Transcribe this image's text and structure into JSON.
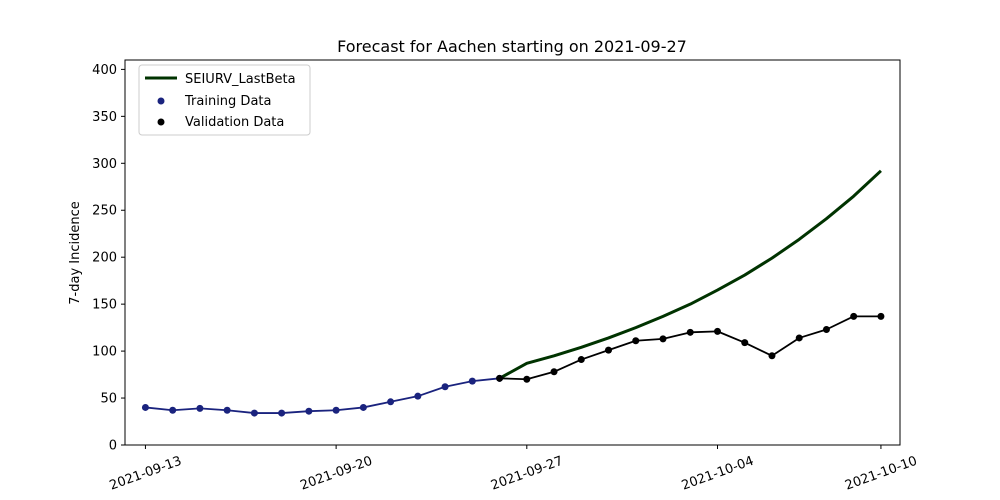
{
  "chart_data": {
    "type": "line",
    "title": "Forecast for Aachen starting on 2021-09-27",
    "xlabel": "",
    "ylabel": "7-day Incidence",
    "xlim": [
      "2021-09-12",
      "2021-10-11"
    ],
    "ylim": [
      0,
      410
    ],
    "x_ticks": [
      "2021-09-13",
      "2021-09-20",
      "2021-09-27",
      "2021-10-04",
      "2021-10-10"
    ],
    "y_ticks": [
      0,
      50,
      100,
      150,
      200,
      250,
      300,
      350,
      400
    ],
    "legend": {
      "position": "top-left",
      "entries": [
        "SEIURV_LastBeta",
        "Training Data",
        "Validation Data"
      ]
    },
    "grid": false,
    "series": [
      {
        "name": "SEIURV_LastBeta",
        "kind": "line",
        "color": "#003300",
        "x": [
          "2021-09-26",
          "2021-09-27",
          "2021-09-28",
          "2021-09-29",
          "2021-09-30",
          "2021-10-01",
          "2021-10-02",
          "2021-10-03",
          "2021-10-04",
          "2021-10-05",
          "2021-10-06",
          "2021-10-07",
          "2021-10-08",
          "2021-10-09",
          "2021-10-10"
        ],
        "y": [
          71,
          87,
          95,
          104,
          114,
          125,
          137,
          150,
          165,
          181,
          199,
          219,
          241,
          265,
          292
        ]
      },
      {
        "name": "Training Data",
        "kind": "line+markers",
        "color": "#1a237e",
        "x": [
          "2021-09-13",
          "2021-09-14",
          "2021-09-15",
          "2021-09-16",
          "2021-09-17",
          "2021-09-18",
          "2021-09-19",
          "2021-09-20",
          "2021-09-21",
          "2021-09-22",
          "2021-09-23",
          "2021-09-24",
          "2021-09-25",
          "2021-09-26"
        ],
        "y": [
          40,
          37,
          39,
          37,
          34,
          34,
          36,
          37,
          40,
          46,
          52,
          62,
          68,
          71
        ]
      },
      {
        "name": "Validation Data",
        "kind": "line+markers",
        "color": "#000000",
        "x": [
          "2021-09-26",
          "2021-09-27",
          "2021-09-28",
          "2021-09-29",
          "2021-09-30",
          "2021-10-01",
          "2021-10-02",
          "2021-10-03",
          "2021-10-04",
          "2021-10-05",
          "2021-10-06",
          "2021-10-07",
          "2021-10-08",
          "2021-10-09",
          "2021-10-10"
        ],
        "y": [
          71,
          70,
          78,
          91,
          101,
          111,
          113,
          120,
          121,
          109,
          95,
          114,
          123,
          137,
          137
        ]
      }
    ]
  }
}
